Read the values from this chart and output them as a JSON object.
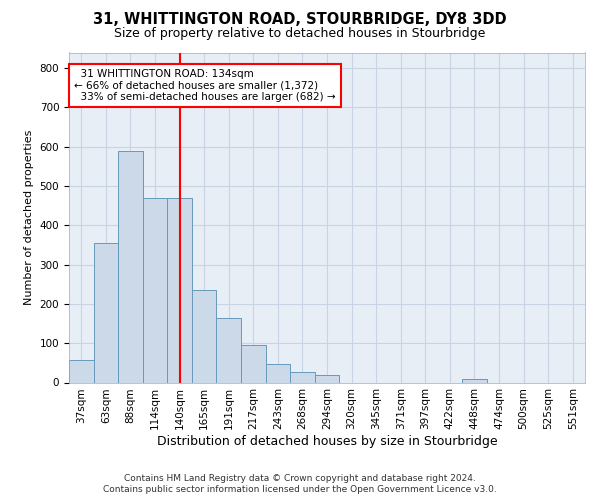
{
  "title": "31, WHITTINGTON ROAD, STOURBRIDGE, DY8 3DD",
  "subtitle": "Size of property relative to detached houses in Stourbridge",
  "xlabel": "Distribution of detached houses by size in Stourbridge",
  "ylabel": "Number of detached properties",
  "footer1": "Contains HM Land Registry data © Crown copyright and database right 2024.",
  "footer2": "Contains public sector information licensed under the Open Government Licence v3.0.",
  "categories": [
    "37sqm",
    "63sqm",
    "88sqm",
    "114sqm",
    "140sqm",
    "165sqm",
    "191sqm",
    "217sqm",
    "243sqm",
    "268sqm",
    "294sqm",
    "320sqm",
    "345sqm",
    "371sqm",
    "397sqm",
    "422sqm",
    "448sqm",
    "474sqm",
    "500sqm",
    "525sqm",
    "551sqm"
  ],
  "values": [
    57,
    356,
    588,
    470,
    470,
    235,
    165,
    95,
    47,
    27,
    20,
    0,
    0,
    0,
    0,
    0,
    10,
    0,
    0,
    0,
    0
  ],
  "bar_color": "#ccd9e8",
  "bar_edge_color": "#6699bb",
  "vline_color": "red",
  "vline_x_index": 4,
  "annotation_text": "  31 WHITTINGTON ROAD: 134sqm\n← 66% of detached houses are smaller (1,372)\n  33% of semi-detached houses are larger (682) →",
  "annotation_box_color": "white",
  "annotation_box_edge_color": "red",
  "ylim": [
    0,
    840
  ],
  "yticks": [
    0,
    100,
    200,
    300,
    400,
    500,
    600,
    700,
    800
  ],
  "grid_color": "#c8d4e4",
  "bg_color": "#e8eef6",
  "title_fontsize": 10.5,
  "subtitle_fontsize": 9,
  "ylabel_fontsize": 8,
  "xlabel_fontsize": 9,
  "tick_fontsize": 7.5,
  "footer_fontsize": 6.5
}
